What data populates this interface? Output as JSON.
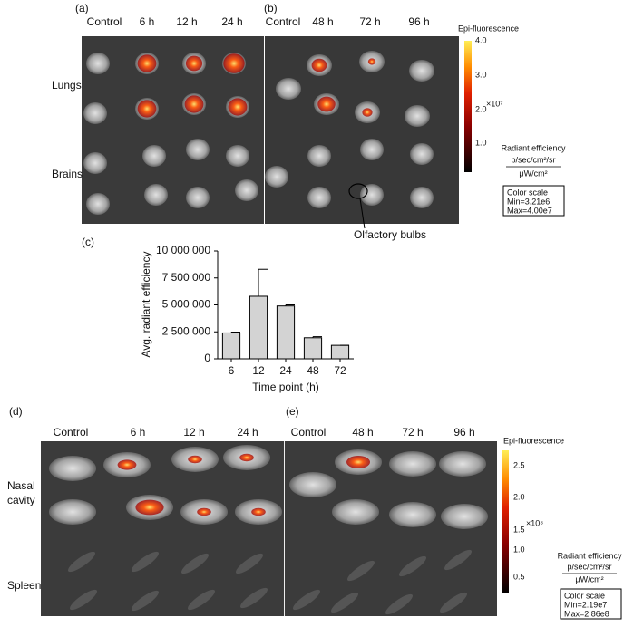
{
  "panel_a": {
    "label": "(a)",
    "columns": [
      "Control",
      "6 h",
      "12 h",
      "24 h"
    ],
    "rows": [
      "Lungs",
      "Brains"
    ]
  },
  "panel_b": {
    "label": "(b)",
    "columns": [
      "Control",
      "48 h",
      "72 h",
      "96 h"
    ],
    "annotation": "Olfactory bulbs",
    "colorbar": {
      "title": "Epi-fluorescence",
      "ticks": [
        "4.0",
        "3.0",
        "2.0",
        "1.0"
      ],
      "multiplier": "×10⁷",
      "unit_title": "Radiant efficiency",
      "unit_num": "p/sec/cm²/sr",
      "unit_den": "μW/cm²",
      "scale": [
        "Color scale",
        "Min=3.21e6",
        "Max=4.00e7"
      ]
    }
  },
  "chart_data": {
    "type": "bar",
    "label": "(c)",
    "xlabel": "Time point (h)",
    "ylabel": "Avg. radiant efficiency",
    "categories": [
      "6",
      "12",
      "24",
      "48",
      "72"
    ],
    "values": [
      2400000,
      5800000,
      4900000,
      1950000,
      1250000
    ],
    "errors": [
      80000,
      2500000,
      100000,
      100000,
      0
    ],
    "color": "#d3d3d3",
    "ylim": [
      0,
      10000000
    ],
    "yticks": [
      0,
      {
        "value": 2500000,
        "label": "2 500 000"
      },
      {
        "value": 5000000,
        "label": "5 000 000"
      },
      {
        "value": 7500000,
        "label": "7 500 000"
      },
      {
        "value": 10000000,
        "label": "10 000 000"
      }
    ]
  },
  "panel_d": {
    "label": "(d)",
    "columns": [
      "Control",
      "6 h",
      "12 h",
      "24 h"
    ],
    "rows": [
      [
        "Nasal",
        "cavity"
      ],
      [
        "Spleen"
      ]
    ]
  },
  "panel_e": {
    "label": "(e)",
    "columns": [
      "Control",
      "48 h",
      "72 h",
      "96 h"
    ],
    "colorbar": {
      "title": "Epi-fluorescence",
      "ticks": [
        "2.5",
        "2.0",
        "1.5",
        "1.0",
        "0.5"
      ],
      "multiplier": "×10⁸",
      "unit_title": "Radiant efficiency",
      "unit_num": "p/sec/cm²/sr",
      "unit_den": "μW/cm²",
      "scale": [
        "Color scale",
        "Min=2.19e7",
        "Max=2.86e8"
      ]
    }
  }
}
